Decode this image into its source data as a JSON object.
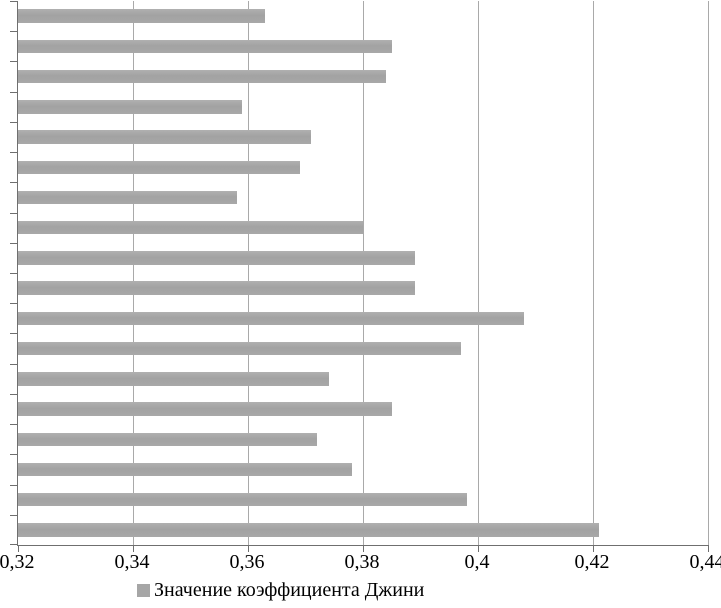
{
  "chart_data": {
    "type": "bar",
    "orientation": "horizontal",
    "title": "",
    "xlabel": "",
    "ylabel": "",
    "categories": [
      "",
      "",
      "",
      "",
      "",
      "",
      "",
      "",
      "",
      "",
      "",
      "",
      "",
      "",
      "",
      "",
      "",
      ""
    ],
    "series": [
      {
        "name": "Значение коэффициента Джини",
        "values": [
          0.363,
          0.385,
          0.384,
          0.359,
          0.371,
          0.369,
          0.358,
          0.38,
          0.389,
          0.389,
          0.408,
          0.397,
          0.374,
          0.385,
          0.372,
          0.378,
          0.398,
          0.421
        ]
      }
    ],
    "xlim": [
      0.32,
      0.44
    ],
    "x_tick_labels": [
      "0,32",
      "0,34",
      "0,36",
      "0,38",
      "0,4",
      "0,42",
      "0,44"
    ],
    "x_tick_values": [
      0.32,
      0.34,
      0.36,
      0.38,
      0.4,
      0.42,
      0.44
    ],
    "grid": "vertical-gridlines-on",
    "legend_position": "bottom",
    "bar_color": "#a6a6a6",
    "gridline_color": "#a9a9a9",
    "axis_color": "#6f6f6f"
  },
  "legend": {
    "label": "Значение коэффициента Джини",
    "swatch_color": "#a6a6a6"
  }
}
